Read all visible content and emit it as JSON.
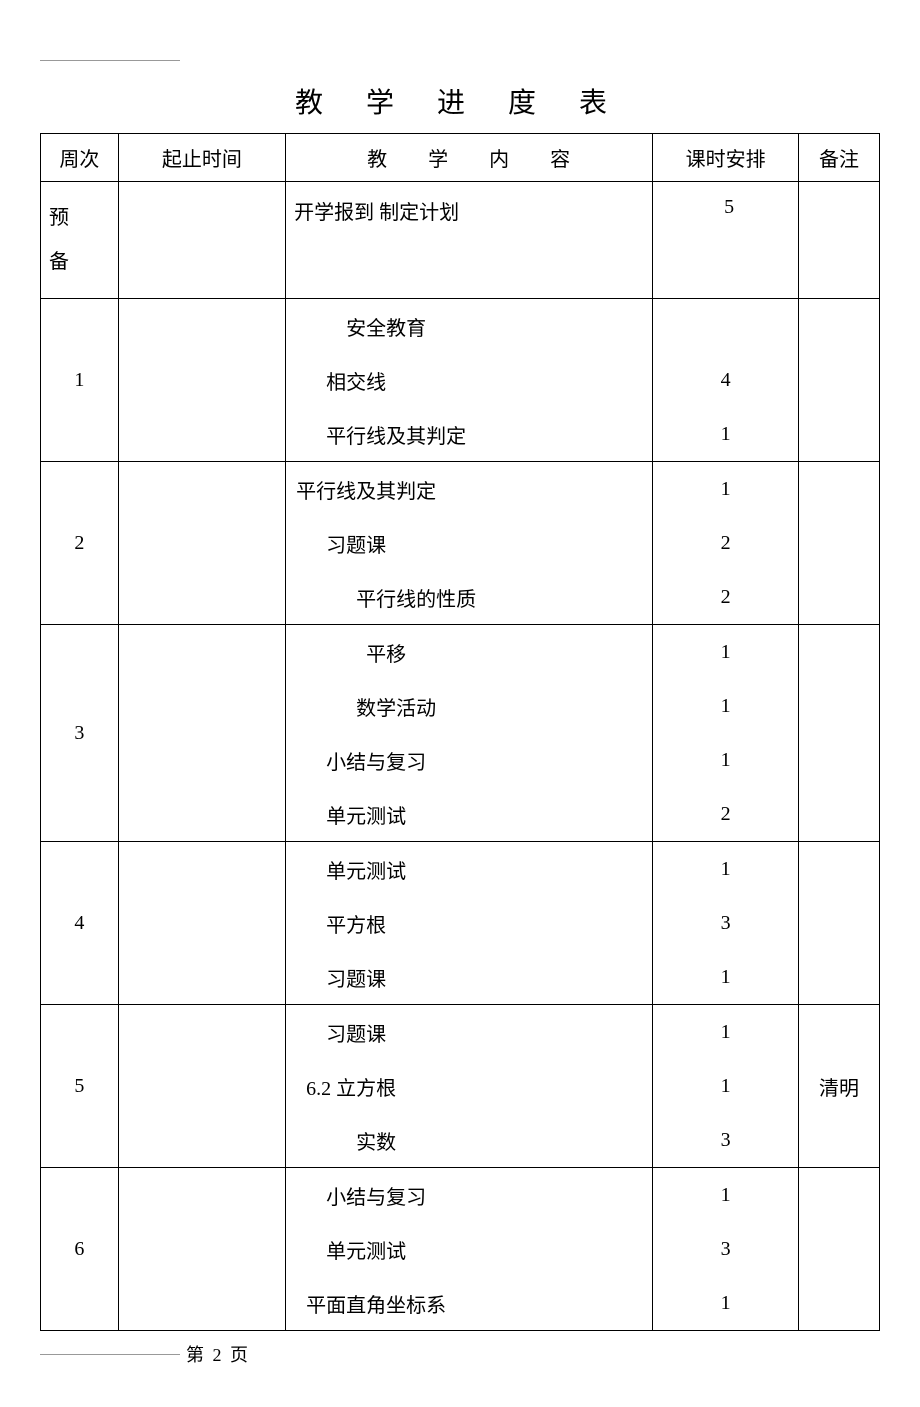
{
  "title": "教 学 进 度 表",
  "columns": {
    "week": "周次",
    "time": "起止时间",
    "content": "教 学 内 容",
    "hours": "课时安排",
    "note": "备注"
  },
  "prep": {
    "week_line1": "预",
    "week_line2": "备",
    "content": "开学报到 制定计划",
    "hours": "5"
  },
  "rows": [
    {
      "week": "1",
      "items": [
        {
          "content": "安全教育",
          "hours": "",
          "indent": 60
        },
        {
          "content": "相交线",
          "hours": "4",
          "indent": 40
        },
        {
          "content": "平行线及其判定",
          "hours": "1",
          "indent": 40
        }
      ],
      "note": ""
    },
    {
      "week": "2",
      "items": [
        {
          "content": "平行线及其判定",
          "hours": "1",
          "indent": 10
        },
        {
          "content": "习题课",
          "hours": "2",
          "indent": 40
        },
        {
          "content": "平行线的性质",
          "hours": "2",
          "indent": 70
        }
      ],
      "note": ""
    },
    {
      "week": "3",
      "items": [
        {
          "content": "平移",
          "hours": "1",
          "indent": 80
        },
        {
          "content": "数学活动",
          "hours": "1",
          "indent": 70
        },
        {
          "content": "小结与复习",
          "hours": "1",
          "indent": 40
        },
        {
          "content": "单元测试",
          "hours": "2",
          "indent": 40
        }
      ],
      "note": ""
    },
    {
      "week": "4",
      "items": [
        {
          "content": "单元测试",
          "hours": "1",
          "indent": 40
        },
        {
          "content": "平方根",
          "hours": "3",
          "indent": 40
        },
        {
          "content": "习题课",
          "hours": "1",
          "indent": 40
        }
      ],
      "note": ""
    },
    {
      "week": "5",
      "items": [
        {
          "content": "习题课",
          "hours": "1",
          "indent": 40
        },
        {
          "content": "6.2 立方根",
          "hours": "1",
          "indent": 20
        },
        {
          "content": "实数",
          "hours": "3",
          "indent": 70
        }
      ],
      "note": "清明"
    },
    {
      "week": "6",
      "items": [
        {
          "content": "小结与复习",
          "hours": "1",
          "indent": 40
        },
        {
          "content": "单元测试",
          "hours": "3",
          "indent": 40
        },
        {
          "content": "平面直角坐标系",
          "hours": "1",
          "indent": 20
        }
      ],
      "note": ""
    }
  ],
  "footer": "第 2 页"
}
